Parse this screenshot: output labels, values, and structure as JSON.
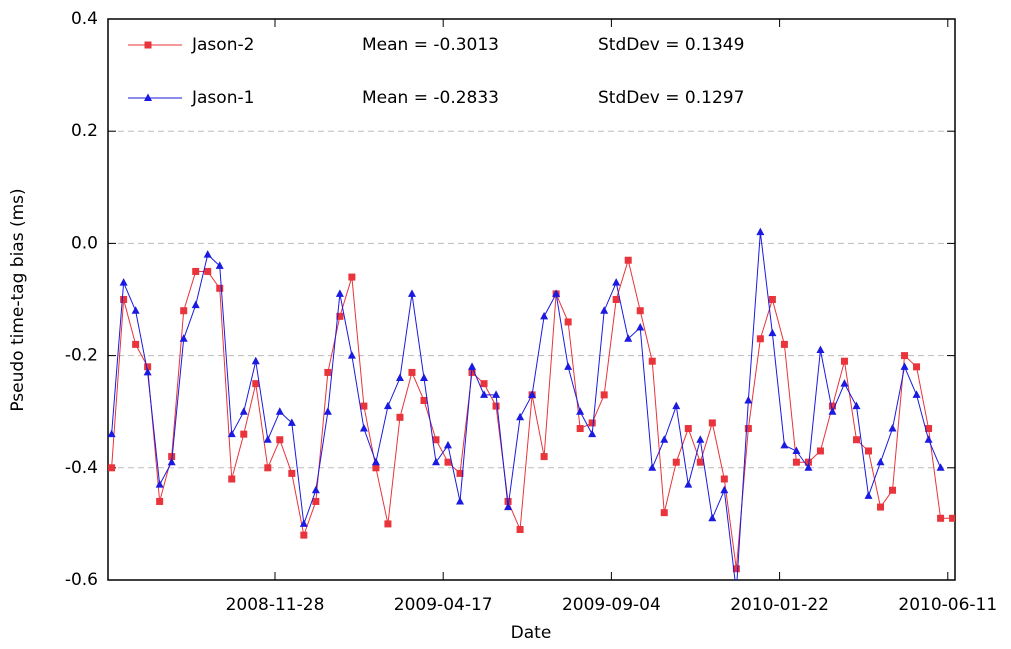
{
  "chart_data": {
    "type": "line",
    "x_label": "Date",
    "y_label": "Pseudo time-tag bias (ms)",
    "x": [
      "2008-07-15",
      "2008-07-25",
      "2008-08-04",
      "2008-08-14",
      "2008-08-24",
      "2008-09-03",
      "2008-09-13",
      "2008-09-23",
      "2008-10-03",
      "2008-10-13",
      "2008-10-23",
      "2008-11-02",
      "2008-11-12",
      "2008-11-22",
      "2008-12-02",
      "2008-12-12",
      "2008-12-22",
      "2009-01-01",
      "2009-01-11",
      "2009-01-21",
      "2009-01-31",
      "2009-02-10",
      "2009-02-20",
      "2009-03-02",
      "2009-03-12",
      "2009-03-22",
      "2009-04-01",
      "2009-04-11",
      "2009-04-21",
      "2009-05-01",
      "2009-05-11",
      "2009-05-21",
      "2009-05-31",
      "2009-06-10",
      "2009-06-20",
      "2009-06-30",
      "2009-07-10",
      "2009-07-20",
      "2009-07-30",
      "2009-08-09",
      "2009-08-19",
      "2009-08-29",
      "2009-09-08",
      "2009-09-18",
      "2009-09-28",
      "2009-10-08",
      "2009-10-18",
      "2009-10-28",
      "2009-11-07",
      "2009-11-17",
      "2009-11-27",
      "2009-12-07",
      "2009-12-17",
      "2009-12-27",
      "2010-01-06",
      "2010-01-16",
      "2010-01-26",
      "2010-02-05",
      "2010-02-15",
      "2010-02-25",
      "2010-03-07",
      "2010-03-17",
      "2010-03-27",
      "2010-04-06",
      "2010-04-16",
      "2010-04-26",
      "2010-05-06",
      "2010-05-16",
      "2010-05-26",
      "2010-06-05",
      "2010-06-15"
    ],
    "series": [
      {
        "name": "Jason-2",
        "color": "#e8343a",
        "marker": "square",
        "mean_label": "Mean = -0.3013",
        "std_label": "StdDev = 0.1349",
        "values": [
          -0.4,
          -0.1,
          -0.18,
          -0.22,
          -0.46,
          -0.38,
          -0.12,
          -0.05,
          -0.05,
          -0.08,
          -0.42,
          -0.34,
          -0.25,
          -0.4,
          -0.35,
          -0.41,
          -0.52,
          -0.46,
          -0.23,
          -0.13,
          -0.06,
          -0.29,
          -0.4,
          -0.5,
          -0.31,
          -0.23,
          -0.28,
          -0.35,
          -0.39,
          -0.41,
          -0.23,
          -0.25,
          -0.29,
          -0.46,
          -0.51,
          -0.27,
          -0.38,
          -0.09,
          -0.14,
          -0.33,
          -0.32,
          -0.27,
          -0.1,
          -0.03,
          -0.12,
          -0.21,
          -0.48,
          -0.39,
          -0.33,
          -0.39,
          -0.32,
          -0.42,
          -0.58,
          -0.33,
          -0.17,
          -0.1,
          -0.18,
          -0.39,
          -0.39,
          -0.37,
          -0.29,
          -0.21,
          -0.35,
          -0.37,
          -0.47,
          -0.44,
          -0.2,
          -0.22,
          -0.33,
          -0.49,
          -0.49
        ]
      },
      {
        "name": "Jason-1",
        "color": "#1a1ae0",
        "marker": "triangle",
        "mean_label": "Mean = -0.2833",
        "std_label": "StdDev = 0.1297",
        "values": [
          -0.34,
          -0.07,
          -0.12,
          -0.23,
          -0.43,
          -0.39,
          -0.17,
          -0.11,
          -0.02,
          -0.04,
          -0.34,
          -0.3,
          -0.21,
          -0.35,
          -0.3,
          -0.32,
          -0.5,
          -0.44,
          -0.3,
          -0.09,
          -0.2,
          -0.33,
          -0.39,
          -0.29,
          -0.24,
          -0.09,
          -0.24,
          -0.39,
          -0.36,
          -0.46,
          -0.22,
          -0.27,
          -0.27,
          -0.47,
          -0.31,
          -0.27,
          -0.13,
          -0.09,
          -0.22,
          -0.3,
          -0.34,
          -0.12,
          -0.07,
          -0.17,
          -0.15,
          -0.4,
          -0.35,
          -0.29,
          -0.43,
          -0.35,
          -0.49,
          -0.44,
          -0.62,
          -0.28,
          0.02,
          -0.16,
          -0.36,
          -0.37,
          -0.4,
          -0.19,
          -0.3,
          -0.25,
          -0.29,
          -0.45,
          -0.39,
          -0.33,
          -0.22,
          -0.27,
          -0.35,
          -0.4,
          null
        ]
      }
    ],
    "xlim": [
      "2008-07-12",
      "2010-06-17"
    ],
    "xticks": [
      "2008-11-28",
      "2009-04-17",
      "2009-09-04",
      "2010-01-22",
      "2010-06-11"
    ],
    "ylim": [
      -0.6,
      0.4
    ],
    "yticks": [
      -0.6,
      -0.4,
      -0.2,
      {
        "value": 0,
        "label": "0.0"
      },
      0.2,
      0.4
    ],
    "grid": true
  }
}
